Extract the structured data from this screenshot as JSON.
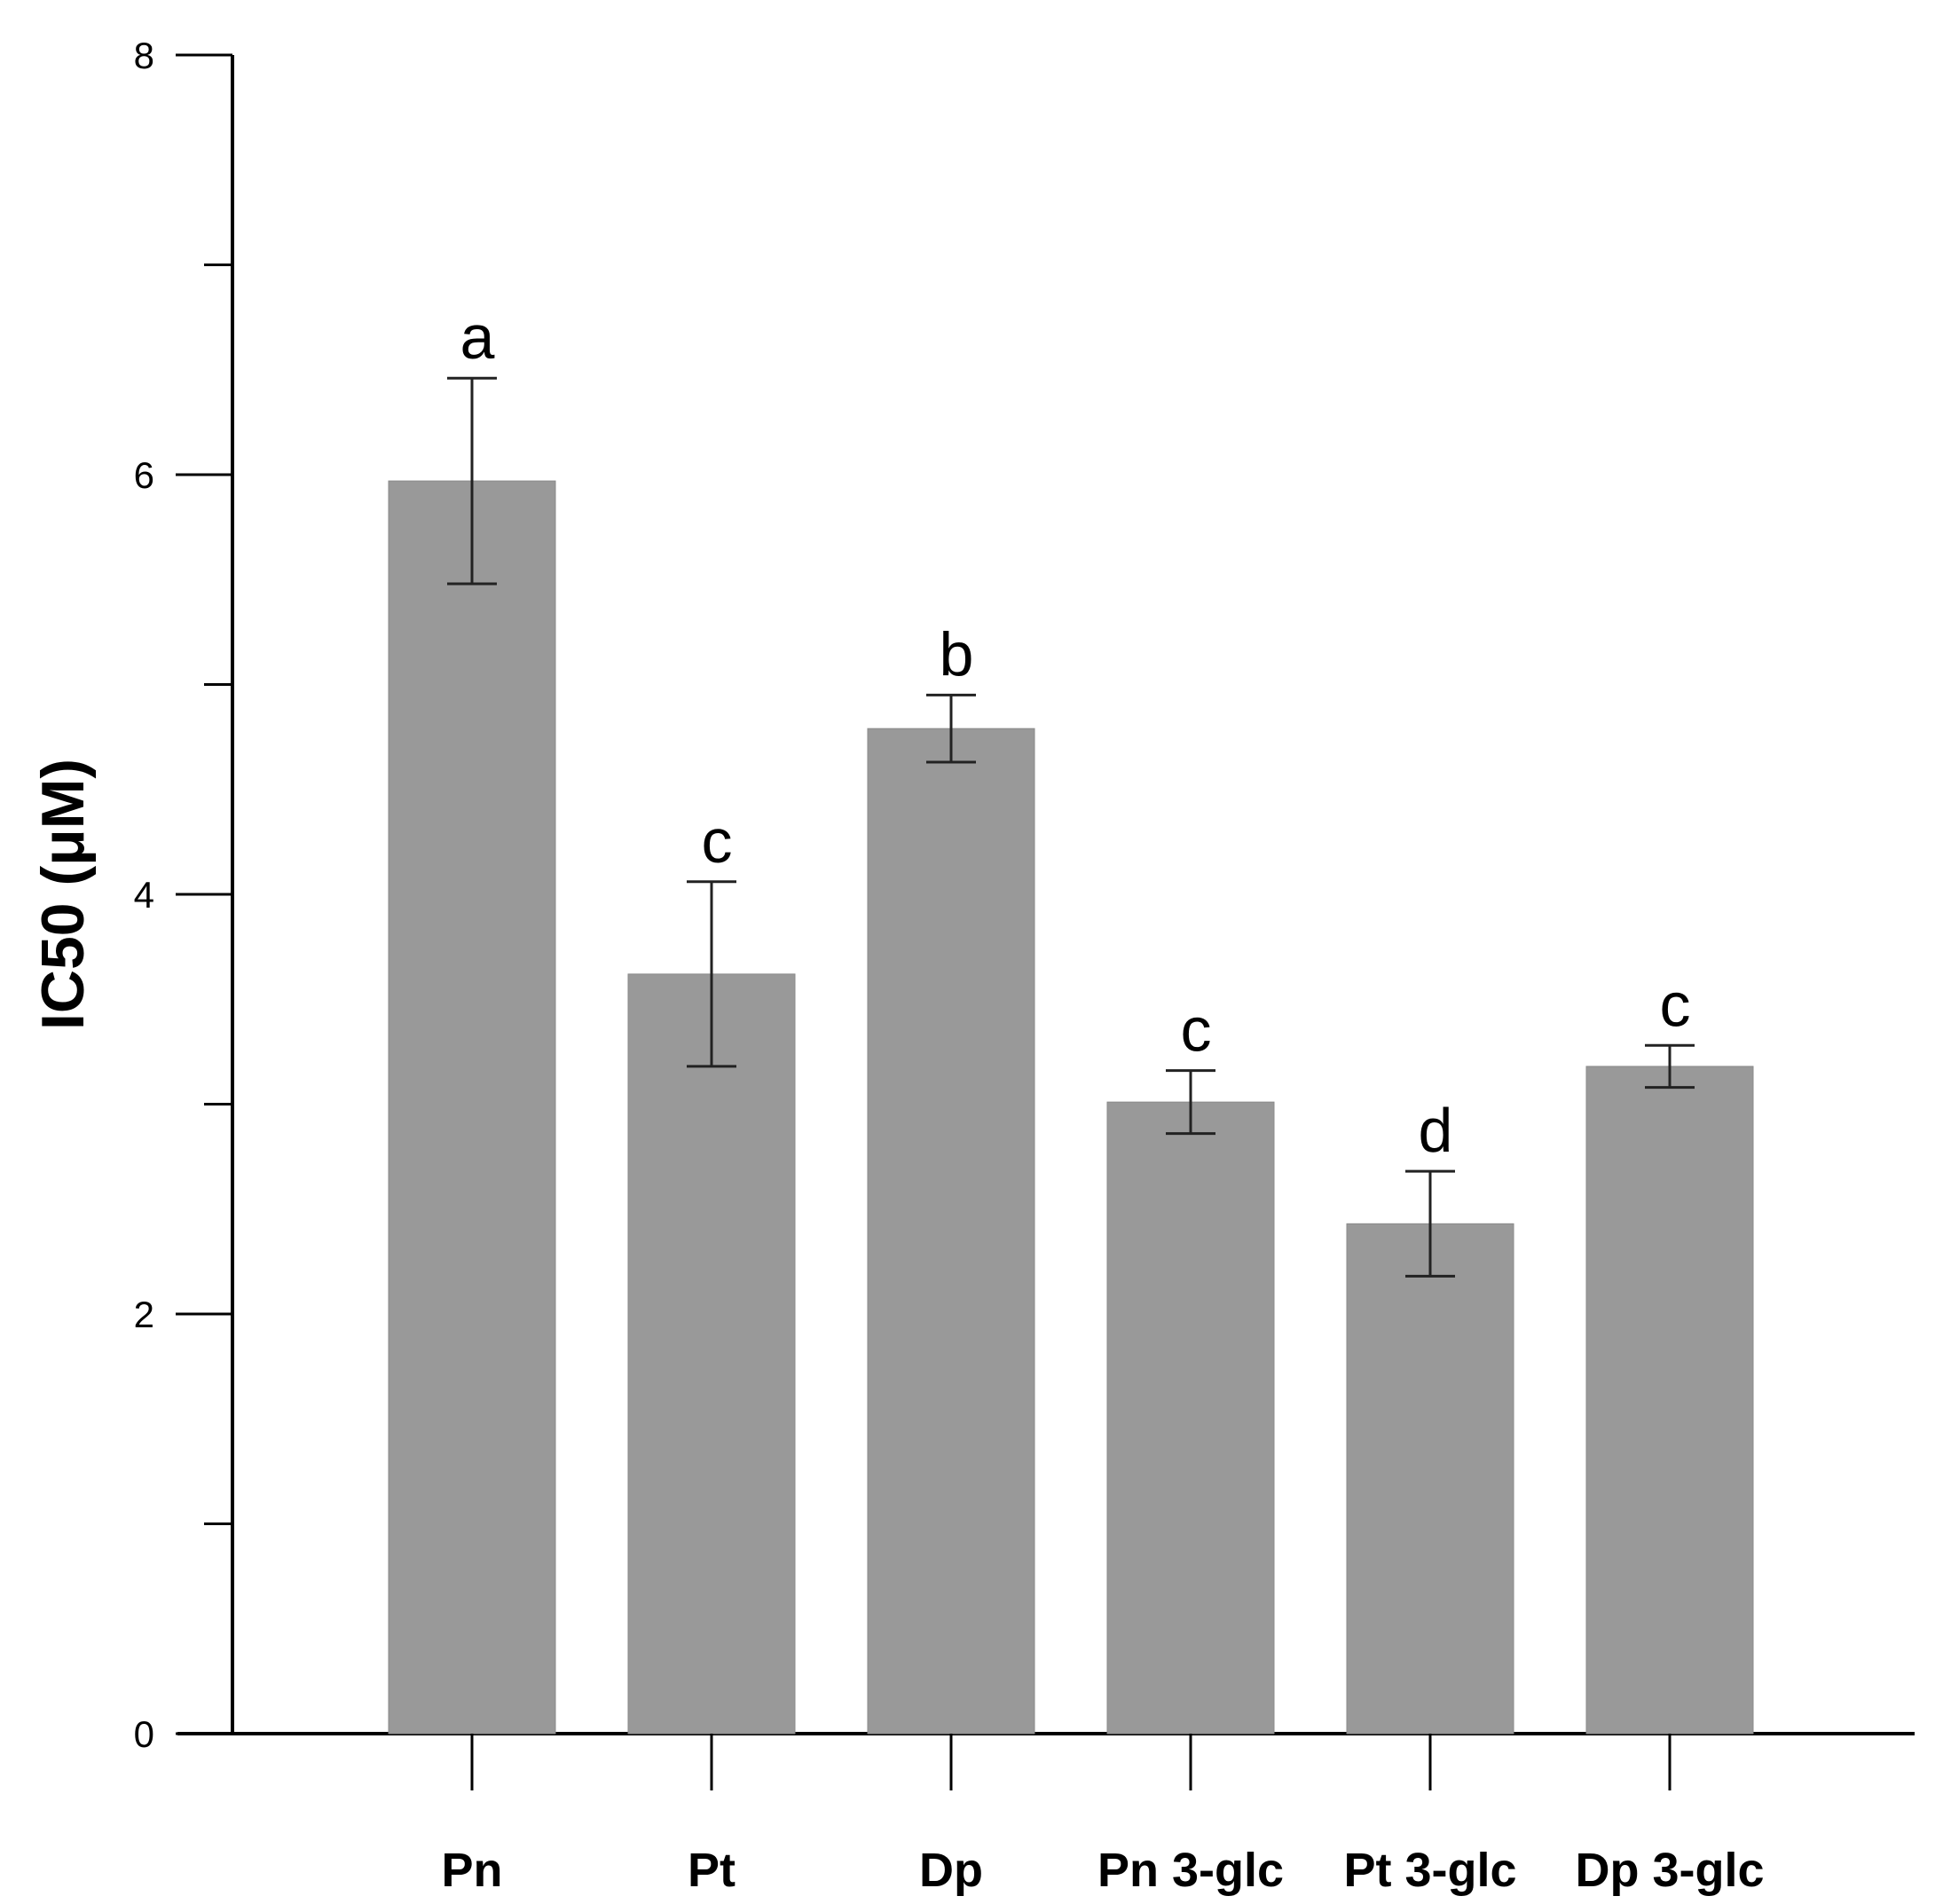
{
  "chart_data": {
    "type": "bar",
    "title": "",
    "xlabel": "",
    "ylabel": "IC50 (μM)",
    "ylim": [
      0,
      8
    ],
    "yticks": [
      0,
      2,
      4,
      6,
      8
    ],
    "grid": false,
    "categories": [
      "Pn",
      "Pt",
      "Dp",
      "Pn 3-glc",
      "Pt 3-glc",
      "Dp 3-glc"
    ],
    "series": [
      {
        "values": [
          5.97,
          3.62,
          4.79,
          3.01,
          2.43,
          3.18
        ],
        "error": [
          0.49,
          0.44,
          0.16,
          0.15,
          0.25,
          0.1
        ],
        "significance": [
          "a",
          "c",
          "b",
          "c",
          "d",
          "c"
        ]
      }
    ],
    "bar_color": "#999999"
  }
}
